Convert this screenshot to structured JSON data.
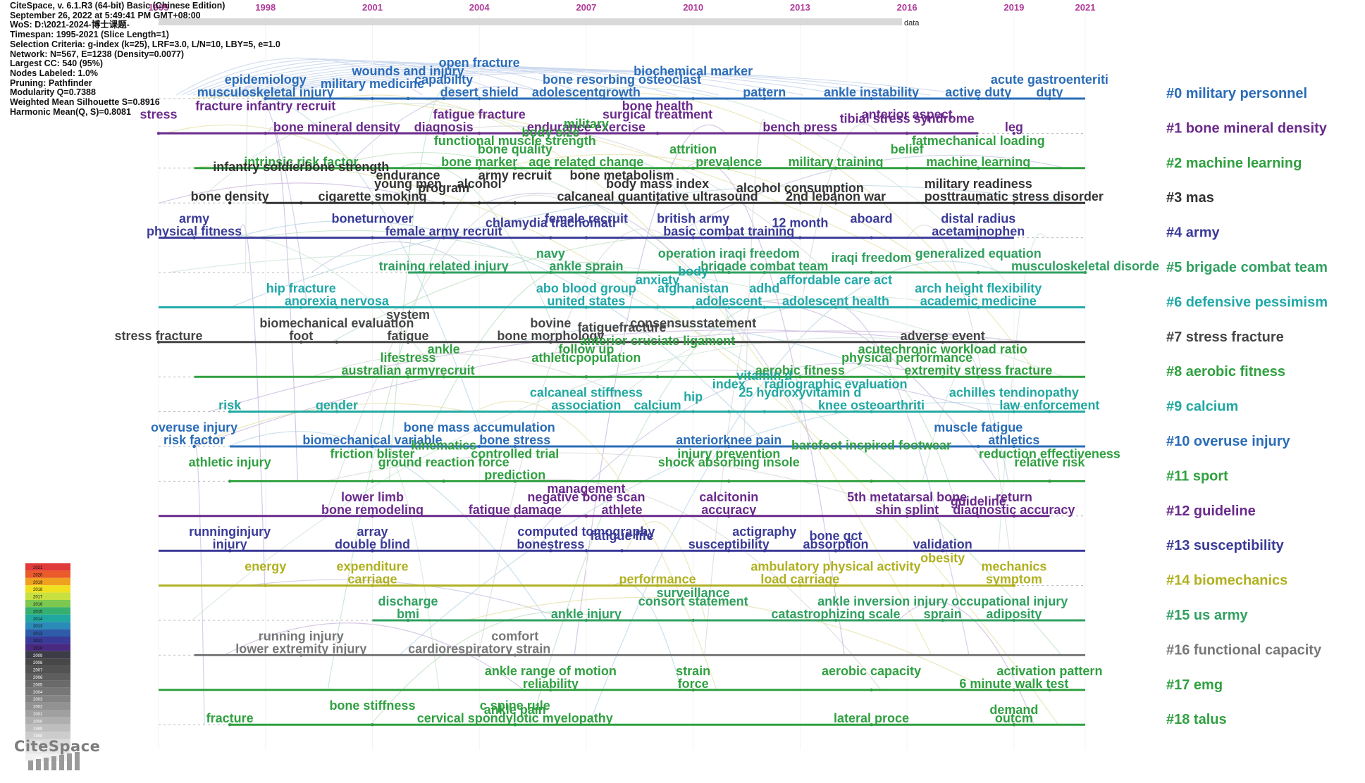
{
  "header_info": [
    "CiteSpace, v. 6.1.R3 (64-bit) Basic (Chinese Edition)",
    "September 26, 2022 at 5:49:41 PM GMT+08:00",
    "WoS: D:\\2021-2024-博士课题-",
    "Timespan: 1995-2021 (Slice Length=1)",
    "Selection Criteria: g-index (k=25), LRF=3.0, L/N=10, LBY=5, e=1.0",
    "Network: N=567, E=1238 (Density=0.0077)",
    "Largest CC: 540 (95%)",
    "Nodes Labeled: 1.0%",
    "Pruning: Pathfinder",
    "Modularity Q=0.7388",
    "Weighted Mean Silhouette S=0.8916",
    "Harmonic Mean(Q, S)=0.8081"
  ],
  "top_bar_label": "data",
  "years": [
    1995,
    1998,
    2001,
    2004,
    2007,
    2010,
    2013,
    2016,
    2019,
    2021
  ],
  "year_label_color": "#b03a9a",
  "logo": "CiteSpace",
  "colorbar_years": [
    "2021",
    "2020",
    "2019",
    "2018",
    "2017",
    "2016",
    "2015",
    "2014",
    "2013",
    "2012",
    "2011",
    "2010",
    "2009",
    "2008",
    "2007",
    "2006",
    "2005",
    "2004",
    "2003",
    "2002",
    "2001",
    "2000",
    "1999",
    "1998",
    "1997",
    "1996",
    "1995"
  ],
  "colorbar_colors": [
    "#e03a3a",
    "#ea5a2a",
    "#f0a020",
    "#f0e020",
    "#c8e040",
    "#7cc850",
    "#36b070",
    "#20a8a0",
    "#2a8ab8",
    "#2e5ca8",
    "#3a3a98",
    "#4a2a80",
    "#3c3c46",
    "#474747",
    "#525252",
    "#5e5e5e",
    "#6a6a6a",
    "#777777",
    "#848484",
    "#929292",
    "#a0a0a0",
    "#afafaf",
    "#bebebe",
    "#cccccc",
    "#dadada",
    "#e6e6e6",
    "#f0f0f0"
  ],
  "clusters": [
    {
      "id": 0,
      "label": "#0 military personnel",
      "color": "#2a6cb8",
      "line_start": 1998,
      "line_end": 2021,
      "upper": [
        [
          2003,
          "capability"
        ],
        [
          2008,
          "bone resorbing osteoclast"
        ],
        [
          2020,
          "acute gastroenteriti"
        ],
        [
          2010,
          "biochemical marker"
        ],
        [
          1998,
          "epidemiology"
        ],
        [
          2002,
          "wounds and injury"
        ],
        [
          2004,
          "open fracture"
        ]
      ],
      "lower": [
        [
          1998,
          "musculoskeletal injury"
        ],
        [
          2001,
          "military medicine"
        ],
        [
          2004,
          "desert shield"
        ],
        [
          2007,
          "adolescentgrowth"
        ],
        [
          2012,
          "pattern"
        ],
        [
          2015,
          "ankle instability"
        ],
        [
          2018,
          "active duty"
        ],
        [
          2020,
          "duty"
        ]
      ]
    },
    {
      "id": 1,
      "label": "#1 bone mineral density",
      "color": "#6a2a8c",
      "line_start": 1995,
      "line_end": 2018,
      "upper": [
        [
          1995,
          "stress"
        ],
        [
          1998,
          "fracture infantry recruit"
        ],
        [
          2004,
          "fatigue fracture"
        ],
        [
          2009,
          "surgical treatment"
        ],
        [
          2009,
          "bone health"
        ],
        [
          2016,
          "anterior aspect"
        ]
      ],
      "lower": [
        [
          2000,
          "bone mineral density"
        ],
        [
          2003,
          "diagnosis"
        ],
        [
          2007,
          "endurance exercise"
        ],
        [
          2013,
          "bench press"
        ],
        [
          2016,
          "tibial stress syndrome"
        ],
        [
          2019,
          "leg"
        ]
      ]
    },
    {
      "id": 2,
      "label": "#2 machine learning",
      "color": "#30a040",
      "line_start": 1996,
      "line_end": 2021,
      "upper": [
        [
          2005,
          "bone quality"
        ],
        [
          2005,
          "functional muscle strength"
        ],
        [
          2006,
          "body size"
        ],
        [
          2007,
          "military"
        ],
        [
          2010,
          "attrition"
        ],
        [
          2016,
          "belief"
        ],
        [
          2018,
          "fatmechanical loading"
        ]
      ],
      "lower": [
        [
          1999,
          "intrinsic risk factor"
        ],
        [
          2004,
          "bone marker"
        ],
        [
          2007,
          "age related change"
        ],
        [
          2011,
          "prevalence"
        ],
        [
          2014,
          "military training"
        ],
        [
          2018,
          "machine learning"
        ]
      ]
    },
    {
      "id": 3,
      "label": "#3 mas",
      "color": "#333333",
      "line_start": 1998,
      "line_end": 2021,
      "upper": [
        [
          2002,
          "young men"
        ],
        [
          2004,
          "alcohol"
        ],
        [
          2009,
          "body mass index"
        ],
        [
          2002,
          "endurance"
        ],
        [
          1999,
          "infantry soldierbone strength"
        ],
        [
          2005,
          "army recruit"
        ],
        [
          2008,
          "bone metabolism"
        ],
        [
          2018,
          "military readiness"
        ]
      ],
      "lower": [
        [
          1997,
          "bone density"
        ],
        [
          2001,
          "cigarette smoking"
        ],
        [
          2003,
          "program"
        ],
        [
          2009,
          "calcaneal quantitative ultrasound"
        ],
        [
          2013,
          "alcohol consumption"
        ],
        [
          2014,
          "2nd lebanon war"
        ],
        [
          2019,
          "posttraumatic stress disorder"
        ]
      ]
    },
    {
      "id": 4,
      "label": "#4 army",
      "color": "#3a3a98",
      "line_start": 1995,
      "line_end": 2019,
      "upper": [
        [
          1996,
          "army"
        ],
        [
          2001,
          "boneturnover"
        ],
        [
          2007,
          "female recruit"
        ],
        [
          2010,
          "british army"
        ],
        [
          2015,
          "aboard"
        ],
        [
          2018,
          "distal radius"
        ]
      ],
      "lower": [
        [
          1996,
          "physical fitness"
        ],
        [
          2003,
          "female army recruit"
        ],
        [
          2006,
          "chlamydia trachomati"
        ],
        [
          2011,
          "basic combat training"
        ],
        [
          2013,
          "12 month"
        ],
        [
          2018,
          "acetaminophen"
        ]
      ]
    },
    {
      "id": 5,
      "label": "#5 brigade combat team",
      "color": "#30a060",
      "line_start": 2002,
      "line_end": 2021,
      "upper": [
        [
          2006,
          "navy"
        ],
        [
          2011,
          "operation iraqi freedom"
        ],
        [
          2018,
          "generalized equation"
        ]
      ],
      "lower": [
        [
          2003,
          "training related injury"
        ],
        [
          2007,
          "ankle sprain"
        ],
        [
          2012,
          "brigade combat team"
        ],
        [
          2015,
          "iraqi freedom"
        ],
        [
          2021,
          "musculoskeletal disorde"
        ]
      ]
    },
    {
      "id": 6,
      "label": "#6 defensive pessimism",
      "color": "#20a8a8",
      "line_start": 1995,
      "line_end": 2021,
      "upper": [
        [
          2010,
          "afghanistan"
        ],
        [
          2012,
          "adhd"
        ],
        [
          1999,
          "hip fracture"
        ],
        [
          2007,
          "abo blood group"
        ],
        [
          2009,
          "anxiety"
        ],
        [
          2010,
          "body"
        ],
        [
          2014,
          "affordable care act"
        ],
        [
          2018,
          "arch height flexibility"
        ]
      ],
      "lower": [
        [
          2000,
          "anorexia nervosa"
        ],
        [
          2007,
          "united states"
        ],
        [
          2011,
          "adolescent"
        ],
        [
          2014,
          "adolescent health"
        ],
        [
          2018,
          "academic medicine"
        ]
      ]
    },
    {
      "id": 7,
      "label": "#7 stress fracture",
      "color": "#454545",
      "line_start": 1995,
      "line_end": 2021,
      "upper": [
        [
          2000,
          "biomechanical evaluation"
        ],
        [
          2002,
          "system"
        ],
        [
          2006,
          "bovine"
        ],
        [
          2010,
          "consensusstatement"
        ]
      ],
      "lower": [
        [
          1995,
          "stress fracture"
        ],
        [
          1999,
          "foot"
        ],
        [
          2002,
          "fatigue"
        ],
        [
          2006,
          "bone morphology"
        ],
        [
          2008,
          "fatiguefracture"
        ],
        [
          2017,
          "adverse event"
        ]
      ]
    },
    {
      "id": 8,
      "label": "#8 aerobic fitness",
      "color": "#30a040",
      "line_start": 1996,
      "line_end": 2021,
      "upper": [
        [
          2016,
          "physical performance"
        ],
        [
          2002,
          "lifestress"
        ],
        [
          2003,
          "ankle"
        ],
        [
          2007,
          "athleticpopulation"
        ],
        [
          2017,
          "acutechronic workload ratio"
        ],
        [
          2007,
          "follow up"
        ],
        [
          2009,
          "anterior cruciate ligament"
        ]
      ],
      "lower": [
        [
          2002,
          "australian armyrecruit"
        ],
        [
          2013,
          "aerobic fitness"
        ],
        [
          2018,
          "extremity stress fracture"
        ]
      ]
    },
    {
      "id": 9,
      "label": "#9 calcium",
      "color": "#20a8a0",
      "line_start": 1997,
      "line_end": 2021,
      "upper": [
        [
          2013,
          "25 hydroxyvitamin d"
        ],
        [
          2019,
          "achilles tendinopathy"
        ],
        [
          2007,
          "calcaneal stiffness"
        ],
        [
          2011,
          "index"
        ],
        [
          2012,
          "vitamin d"
        ],
        [
          2014,
          "radiographic evaluation"
        ]
      ],
      "lower": [
        [
          1997,
          "risk"
        ],
        [
          2000,
          "gender"
        ],
        [
          2007,
          "association"
        ],
        [
          2009,
          "calcium"
        ],
        [
          2010,
          "hip"
        ],
        [
          2015,
          "knee osteoarthriti"
        ],
        [
          2020,
          "law enforcement"
        ]
      ]
    },
    {
      "id": 10,
      "label": "#10 overuse injury",
      "color": "#2a6cb8",
      "line_start": 1997,
      "line_end": 2021,
      "upper": [
        [
          2018,
          "muscle fatigue"
        ],
        [
          1996,
          "overuse injury"
        ],
        [
          2004,
          "bone mass accumulation"
        ]
      ],
      "lower": [
        [
          1996,
          "risk factor"
        ],
        [
          2001,
          "biomechanical variable"
        ],
        [
          2005,
          "bone stress"
        ],
        [
          2011,
          "anteriorknee pain"
        ],
        [
          2019,
          "athletics"
        ]
      ]
    },
    {
      "id": 11,
      "label": "#11 sport",
      "color": "#30a040",
      "line_start": 1997,
      "line_end": 2021,
      "upper": [
        [
          2003,
          "ground reaction force"
        ],
        [
          2005,
          "controlled trial"
        ],
        [
          2011,
          "shock absorbing insole"
        ],
        [
          2020,
          "relative risk"
        ],
        [
          1997,
          "athletic injury"
        ],
        [
          2001,
          "friction blister"
        ],
        [
          2003,
          "kinematics"
        ],
        [
          2011,
          "injury prevention"
        ],
        [
          2015,
          "barefoot inspired footwear"
        ],
        [
          2020,
          "reduction effectiveness"
        ]
      ],
      "lower": [
        [
          2005,
          "prediction"
        ]
      ]
    },
    {
      "id": 12,
      "label": "#12 guideline",
      "color": "#6a2a8c",
      "line_start": 1995,
      "line_end": 2020,
      "upper": [
        [
          2001,
          "lower limb"
        ],
        [
          2007,
          "negative bone scan"
        ],
        [
          2011,
          "calcitonin"
        ],
        [
          2016,
          "5th metatarsal bone"
        ],
        [
          2019,
          "return"
        ],
        [
          2007,
          "management"
        ]
      ],
      "lower": [
        [
          2001,
          "bone remodeling"
        ],
        [
          2005,
          "fatigue damage"
        ],
        [
          2008,
          "athlete"
        ],
        [
          2011,
          "accuracy"
        ],
        [
          2016,
          "shin splint"
        ],
        [
          2019,
          "diagnostic accuracy"
        ],
        [
          2018,
          "guideline"
        ]
      ]
    },
    {
      "id": 13,
      "label": "#13 susceptibility",
      "color": "#3a3a98",
      "line_start": 1995,
      "line_end": 2021,
      "upper": [
        [
          1997,
          "runninginjury"
        ],
        [
          2001,
          "array"
        ],
        [
          2007,
          "computed tomography"
        ],
        [
          2012,
          "actigraphy"
        ]
      ],
      "lower": [
        [
          1997,
          "injury"
        ],
        [
          2001,
          "double blind"
        ],
        [
          2006,
          "bonestress"
        ],
        [
          2008,
          "fatigue life"
        ],
        [
          2011,
          "susceptibility"
        ],
        [
          2014,
          "absorption"
        ],
        [
          2017,
          "validation"
        ],
        [
          2014,
          "bone qct"
        ]
      ]
    },
    {
      "id": 14,
      "label": "#14 biomechanics",
      "color": "#b0b020",
      "line_start": 1995,
      "line_end": 2019,
      "upper": [
        [
          1998,
          "energy"
        ],
        [
          2001,
          "expenditure"
        ],
        [
          2014,
          "ambulatory physical activity"
        ],
        [
          2017,
          "obesity"
        ],
        [
          2019,
          "mechanics"
        ]
      ],
      "lower": [
        [
          2001,
          "carriage"
        ],
        [
          2009,
          "performance"
        ],
        [
          2013,
          "load carriage"
        ],
        [
          2019,
          "symptom"
        ]
      ]
    },
    {
      "id": 15,
      "label": "#15 us army",
      "color": "#30a060",
      "line_start": 2001,
      "line_end": 2021,
      "upper": [
        [
          2002,
          "discharge"
        ],
        [
          2010,
          "consort statement"
        ],
        [
          2017,
          "ankle inversion injury occupational injury"
        ],
        [
          2010,
          "surveillance"
        ]
      ],
      "lower": [
        [
          2002,
          "bmi"
        ],
        [
          2007,
          "ankle injury"
        ],
        [
          2014,
          "catastrophizing scale"
        ],
        [
          2017,
          "sprain"
        ],
        [
          2019,
          "adiposity"
        ]
      ]
    },
    {
      "id": 16,
      "label": "#16 functional capacity",
      "color": "#777777",
      "line_start": 1996,
      "line_end": 2021,
      "upper": [
        [
          1999,
          "running injury"
        ],
        [
          2005,
          "comfort"
        ]
      ],
      "lower": [
        [
          1999,
          "lower extremity injury"
        ],
        [
          2004,
          "cardiorespiratory strain"
        ]
      ]
    },
    {
      "id": 17,
      "label": "#17 emg",
      "color": "#30a040",
      "line_start": 1995,
      "line_end": 2021,
      "upper": [
        [
          2006,
          "ankle range of motion"
        ],
        [
          2010,
          "strain"
        ],
        [
          2015,
          "aerobic capacity"
        ],
        [
          2020,
          "activation pattern"
        ]
      ],
      "lower": [
        [
          2006,
          "reliability"
        ],
        [
          2010,
          "force"
        ],
        [
          2019,
          "6 minute walk test"
        ]
      ]
    },
    {
      "id": 18,
      "label": "#18 talus",
      "color": "#30a040",
      "line_start": 1997,
      "line_end": 2021,
      "upper": [
        [
          2005,
          "c spine rule"
        ],
        [
          2001,
          "bone stiffness"
        ]
      ],
      "lower": [
        [
          1997,
          "fracture"
        ],
        [
          2005,
          "cervical spondylotic myelopathy"
        ],
        [
          2005,
          "ankle pain"
        ],
        [
          2015,
          "lateral proce"
        ],
        [
          2019,
          "outcm"
        ],
        [
          2019,
          "demand"
        ]
      ]
    }
  ]
}
